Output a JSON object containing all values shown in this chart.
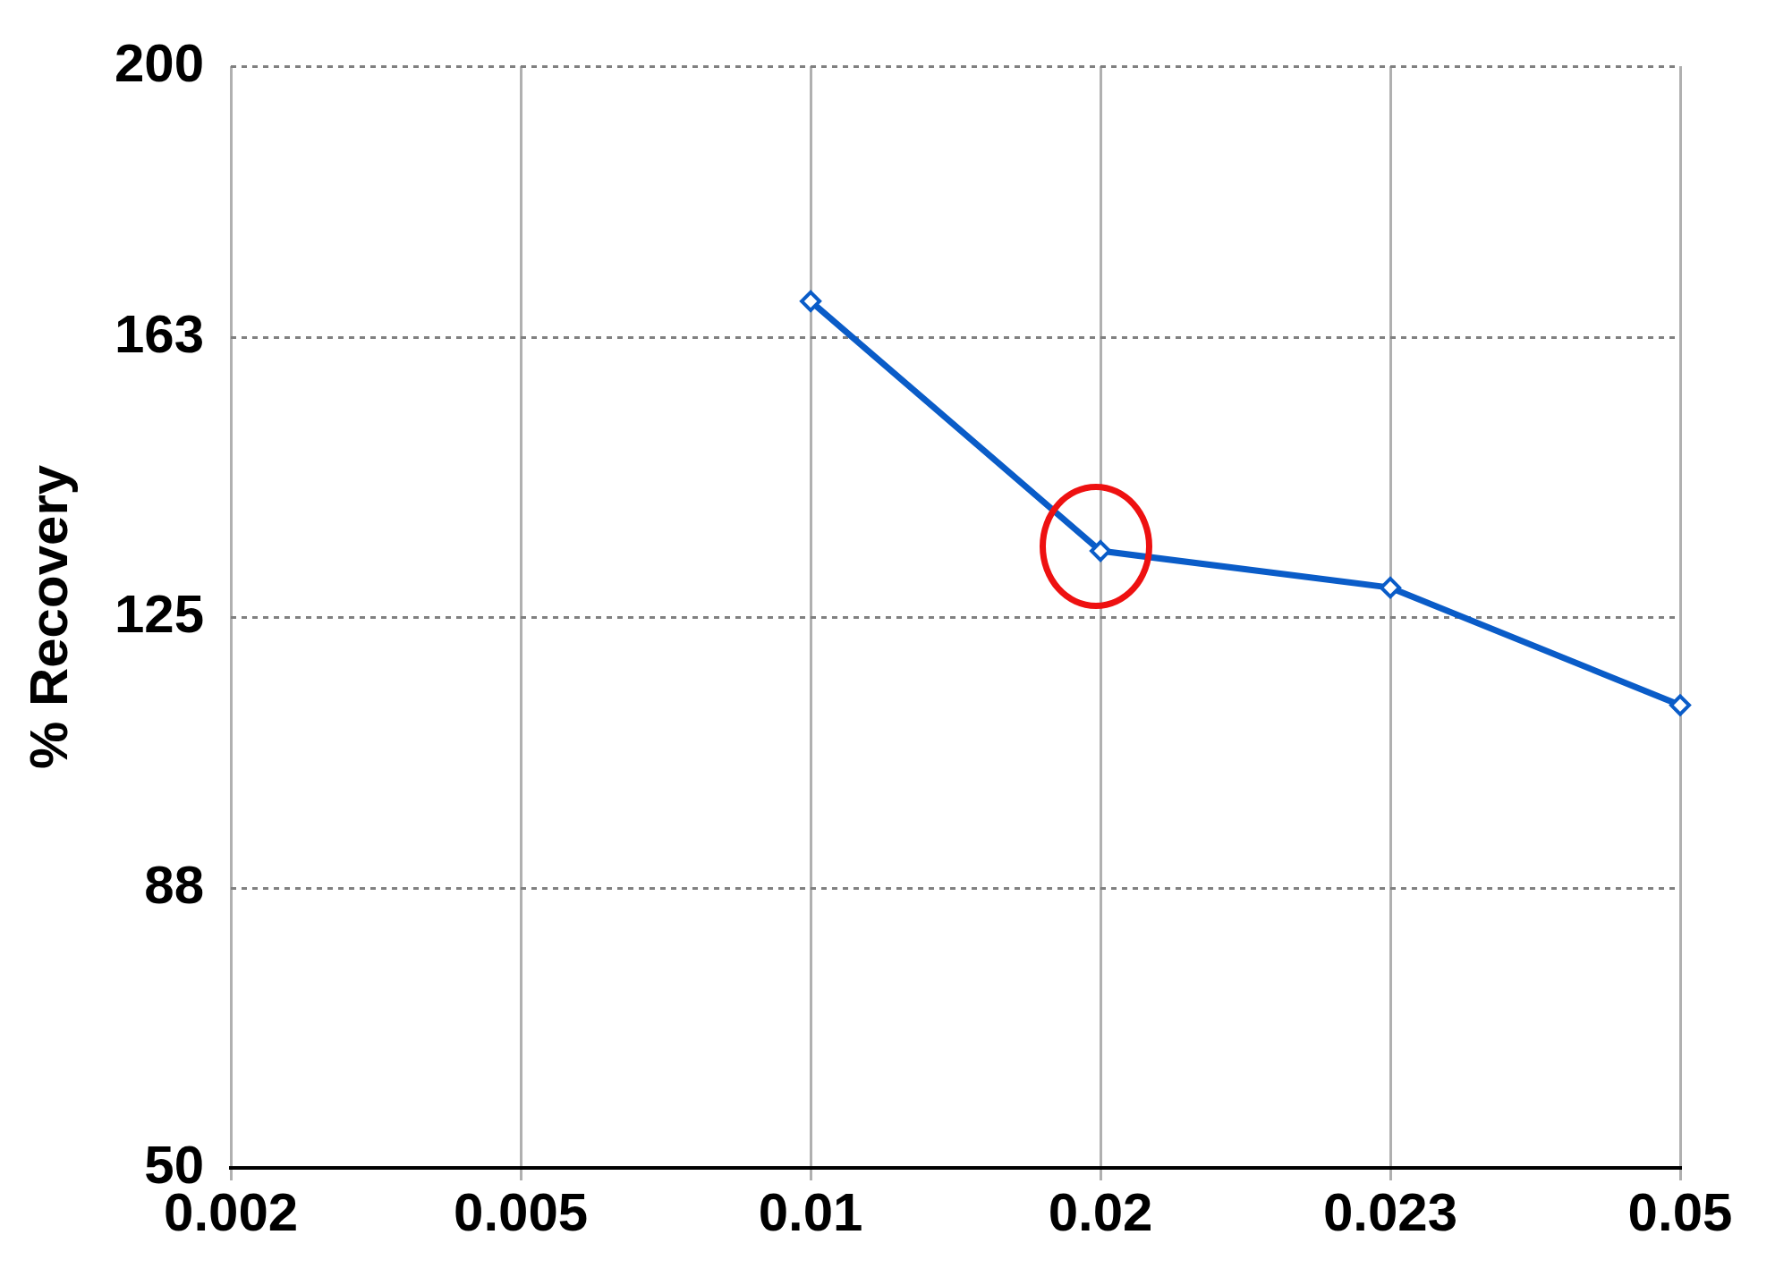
{
  "chart_data": {
    "type": "line",
    "ylabel": "% Recovery",
    "categories": [
      "0.002",
      "0.005",
      "0.01",
      "0.02",
      "0.023",
      "0.05"
    ],
    "series": [
      {
        "color": "#0a5cc8",
        "values": [
          null,
          null,
          168,
          134,
          129,
          113
        ]
      }
    ],
    "ylim": [
      50,
      200
    ],
    "yticks": [
      50,
      88,
      125,
      163,
      200
    ],
    "grid": true,
    "marker": "diamond",
    "line_style": "solid",
    "legend": false
  }
}
